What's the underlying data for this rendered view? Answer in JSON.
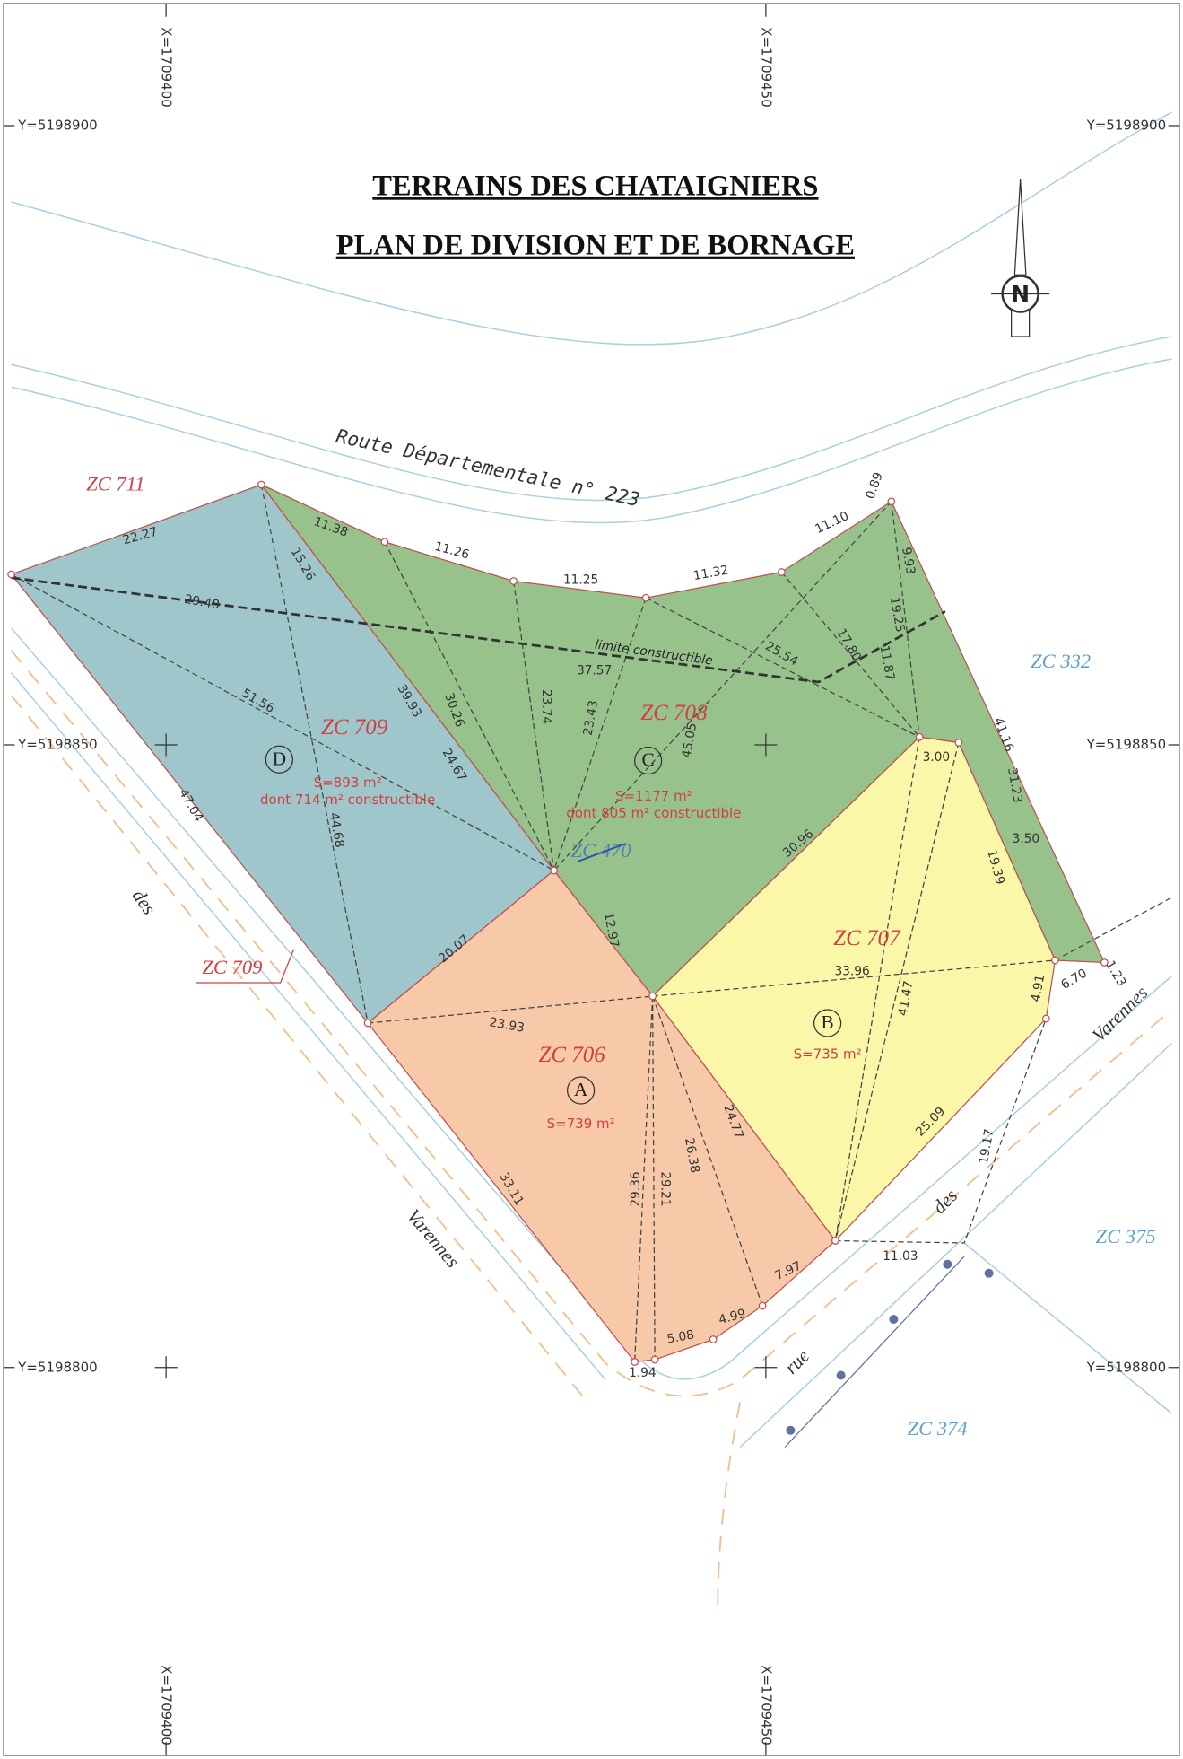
{
  "title": [
    "TERRAINS DES CHATAIGNIERS",
    "PLAN DE DIVISION ET DE BORNAGE"
  ],
  "grid": {
    "x": [
      "X=1709400",
      "X=1709450"
    ],
    "y": [
      "Y=5198900",
      "Y=5198850",
      "Y=5198800"
    ]
  },
  "north": "N",
  "road": "Route Départementale n° 223",
  "limit": "limite constructible",
  "parcels": [
    {
      "zc": "ZC 709",
      "letter": "D",
      "area": "S=893 m²",
      "constructible": "dont 714 m² constructible"
    },
    {
      "zc": "ZC 708",
      "letter": "C",
      "area": "S=1177 m²",
      "constructible": "dont 805 m² constructible"
    },
    {
      "zc": "ZC 707",
      "letter": "B",
      "area": "S=735 m²"
    },
    {
      "zc": "ZC 706",
      "letter": "A",
      "area": "S=739 m²"
    }
  ],
  "neighbors": [
    "ZC 711",
    "ZC 709",
    "ZC 470",
    "ZC 332",
    "ZC 375",
    "ZC 374"
  ],
  "streets": [
    "des",
    "Varennes",
    "rue",
    "des",
    "Varennes"
  ],
  "measurements": [
    "22.27",
    "11.38",
    "15.26",
    "11.26",
    "11.25",
    "11.32",
    "11.10",
    "0.89",
    "9.93",
    "19.25",
    "17.80",
    "11.87",
    "25.54",
    "29.48",
    "37.57",
    "39.93",
    "30.26",
    "23.74",
    "23.43",
    "45.05",
    "51.56",
    "24.67",
    "44.68",
    "47.04",
    "20.07",
    "12.97",
    "30.96",
    "41.16",
    "31.23",
    "3.00",
    "3.50",
    "19.39",
    "33.96",
    "41.47",
    "6.70",
    "4.91",
    "1.23",
    "23.93",
    "24.77",
    "26.38",
    "29.21",
    "29.36",
    "33.11",
    "25.09",
    "19.17",
    "11.03",
    "7.97",
    "4.99",
    "5.08",
    "1.94"
  ]
}
